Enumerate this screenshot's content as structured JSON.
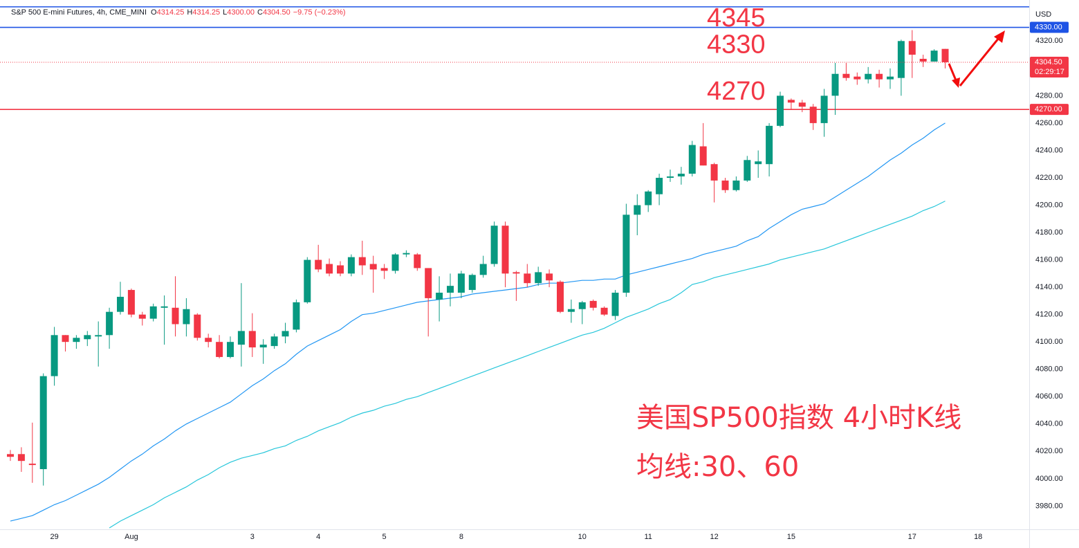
{
  "chart_data": {
    "type": "candlestick",
    "header": {
      "symbol": "S&P 500 E-mini Futures, 4h, CME_MINI",
      "ohlc": [
        {
          "key": "O",
          "value": "4314.25"
        },
        {
          "key": "H",
          "value": "4314.25"
        },
        {
          "key": "L",
          "value": "4300.00"
        },
        {
          "key": "C",
          "value": "4304.50"
        }
      ],
      "change": "−9.75 (−0.23%)"
    },
    "currency": "USD",
    "categories": [
      null,
      null,
      null,
      null,
      "29",
      null,
      null,
      null,
      null,
      null,
      null,
      "Aug",
      null,
      null,
      null,
      null,
      null,
      null,
      null,
      null,
      null,
      null,
      "3",
      null,
      null,
      null,
      null,
      null,
      "4",
      null,
      null,
      null,
      null,
      null,
      "5",
      null,
      null,
      null,
      null,
      null,
      null,
      "8",
      null,
      null,
      null,
      null,
      null,
      null,
      null,
      null,
      null,
      null,
      "10",
      null,
      null,
      null,
      null,
      null,
      "11",
      null,
      null,
      null,
      null,
      null,
      "12",
      null,
      null,
      null,
      null,
      null,
      null,
      "15",
      null,
      null,
      null,
      null,
      null,
      null,
      null,
      null,
      null,
      null,
      "17",
      null,
      null,
      null,
      null,
      null,
      "18",
      null,
      null,
      null,
      null
    ],
    "open": [
      4018,
      4018,
      4011,
      4007,
      4075,
      4105,
      4100,
      4102,
      4104,
      4105,
      4122,
      4138,
      4120,
      4117,
      4125,
      4125,
      4113,
      4120,
      4103,
      4100,
      4089,
      4098,
      4108,
      4096,
      4097,
      4104,
      4109,
      4129,
      4160,
      4157,
      4156,
      4150,
      4162,
      4157,
      4154,
      4152,
      4164,
      4164,
      4154,
      4131,
      4136,
      4136,
      4138,
      4149,
      4157,
      4185,
      4151,
      4150,
      4143,
      4150,
      4144,
      4122,
      4124,
      4130,
      4125,
      4119,
      4136,
      4193,
      4200,
      4208,
      4220,
      4221,
      4223,
      4243,
      4230,
      4218,
      4211,
      4218,
      4230,
      4230,
      4258,
      4277,
      4275,
      4272,
      4260,
      4280,
      4296,
      4294,
      4292,
      4296,
      4292,
      4293,
      4320,
      4307,
      4305,
      4314.25,
      null,
      null,
      null,
      null,
      null,
      null,
      null
    ],
    "high": [
      4021,
      4023,
      4041,
      4077,
      4111,
      4105,
      4105,
      4108,
      4115,
      4125,
      4144,
      4139,
      4122,
      4128,
      4134,
      4148,
      4132,
      4121,
      4106,
      4105,
      4104,
      4143,
      4121,
      4102,
      4106,
      4114,
      4131,
      4162,
      4171,
      4161,
      4159,
      4164,
      4174,
      4163,
      4157,
      4165,
      4167,
      4165,
      4154,
      4148,
      4150,
      4152,
      4150,
      4163,
      4188,
      4188,
      4152,
      4157,
      4155,
      4153,
      4145,
      4131,
      4130,
      4131,
      4126,
      4138,
      4201,
      4208,
      4211,
      4223,
      4226,
      4228,
      4247,
      4260,
      4231,
      4220,
      4221,
      4236,
      4240,
      4260,
      4283,
      4278,
      4277,
      4274,
      4285,
      4304,
      4304,
      4297,
      4301,
      4299,
      4300,
      4321,
      4328,
      4310,
      4314,
      4314.25,
      null,
      null,
      null,
      null,
      null,
      null,
      null
    ],
    "low": [
      4013,
      4005,
      3997,
      3995,
      4068,
      4093,
      4095,
      4097,
      4082,
      4095,
      4120,
      4118,
      4112,
      4115,
      4098,
      4104,
      4104,
      4101,
      4096,
      4088,
      4088,
      4082,
      4089,
      4084,
      4095,
      4099,
      4107,
      4128,
      4151,
      4148,
      4148,
      4148,
      4149,
      4136,
      4146,
      4150,
      4162,
      4152,
      4104,
      4115,
      4126,
      4132,
      4136,
      4147,
      4155,
      4140,
      4130,
      4140,
      4141,
      4140,
      4121,
      4114,
      4113,
      4123,
      4119,
      4116,
      4133,
      4178,
      4195,
      4200,
      4217,
      4215,
      4221,
      4229,
      4202,
      4209,
      4210,
      4217,
      4220,
      4221,
      4257,
      4270,
      4268,
      4255,
      4250,
      4266,
      4291,
      4288,
      4289,
      4286,
      4285,
      4280,
      4293,
      4301,
      4305,
      4300,
      null,
      null,
      null,
      null,
      null,
      null,
      null
    ],
    "close": [
      4016,
      4013,
      4010,
      4075,
      4105,
      4100,
      4103,
      4105,
      4105,
      4122,
      4133,
      4120,
      4117,
      4126,
      4126,
      4113,
      4124,
      4103,
      4100,
      4089,
      4100,
      4108,
      4096,
      4098,
      4104,
      4108,
      4129,
      4160,
      4153,
      4150,
      4150,
      4162,
      4156,
      4153,
      4152,
      4164,
      4165,
      4154,
      4132,
      4136,
      4141,
      4150,
      4149,
      4157,
      4185,
      4150,
      4150,
      4143,
      4151,
      4145,
      4122,
      4124,
      4129,
      4125,
      4120,
      4136,
      4193,
      4200,
      4210,
      4220,
      4221,
      4223,
      4244,
      4229,
      4218,
      4211,
      4218,
      4233,
      4232,
      4258,
      4280,
      4275,
      4272,
      4260,
      4280,
      4296,
      4293,
      4292,
      4296,
      4292,
      4294,
      4320,
      4310,
      4305,
      4313,
      4304.5,
      null,
      null,
      null,
      null,
      null,
      null,
      null
    ],
    "up_color": "#089981",
    "down_color": "#f23645",
    "overlays": [
      {
        "color": "#2196f3",
        "values": [
          3969,
          3971,
          3973,
          3977,
          3981,
          3984,
          3988,
          3992,
          3996,
          4001,
          4007,
          4013,
          4018,
          4024,
          4029,
          4035,
          4040,
          4044,
          4048,
          4052,
          4056,
          4062,
          4068,
          4073,
          4079,
          4084,
          4091,
          4097,
          4101,
          4105,
          4109,
          4115,
          4120,
          4121,
          4123,
          4125,
          4127,
          4129,
          4130,
          4131,
          4132,
          4133,
          4135,
          4136,
          4137,
          4138,
          4139,
          4140,
          4142,
          4143,
          4143,
          4144,
          4145,
          4145,
          4146,
          4146,
          4149,
          4151,
          4153,
          4155,
          4157,
          4159,
          4161,
          4164,
          4166,
          4168,
          4170,
          4174,
          4177,
          4183,
          4188,
          4193,
          4197,
          4199,
          4201,
          4206,
          4211,
          4216,
          4221,
          4227,
          4233,
          4238,
          4244,
          4249,
          4255,
          4260,
          null,
          null,
          null,
          null,
          null,
          null,
          null
        ]
      },
      {
        "color": "#26c6da",
        "values": [
          null,
          null,
          null,
          null,
          null,
          null,
          null,
          null,
          null,
          3964,
          3969,
          3973,
          3977,
          3981,
          3986,
          3990,
          3994,
          3999,
          4003,
          4008,
          4012,
          4015,
          4017,
          4019,
          4022,
          4024,
          4028,
          4031,
          4035,
          4038,
          4041,
          4045,
          4048,
          4050,
          4053,
          4055,
          4058,
          4060,
          4063,
          4066,
          4069,
          4072,
          4075,
          4078,
          4081,
          4084,
          4087,
          4090,
          4093,
          4096,
          4099,
          4102,
          4105,
          4107,
          4110,
          4114,
          4118,
          4121,
          4124,
          4128,
          4131,
          4136,
          4142,
          4144,
          4147,
          4149,
          4151,
          4153,
          4155,
          4157,
          4160,
          4162,
          4164,
          4166,
          4168,
          4171,
          4174,
          4177,
          4180,
          4183,
          4186,
          4189,
          4192,
          4196,
          4199,
          4203,
          null,
          null,
          null,
          null,
          null,
          null,
          null
        ]
      }
    ],
    "levels": [
      {
        "value": 4345,
        "color": "#1e53e5",
        "annotation": "4345"
      },
      {
        "value": 4330,
        "color": "#1e53e5",
        "label": "4330.00",
        "annotation": "4330"
      },
      {
        "value": 4270,
        "color": "#f23645",
        "label": "4270.00",
        "annotation": "4270"
      }
    ],
    "last_price": {
      "value": 4304.5,
      "label": "4304.50",
      "countdown": "02:29:17",
      "color": "#f23645"
    },
    "annotations": [
      "美国SP500指数 4小时K线",
      "均线:30、60"
    ],
    "ylim": [
      3963,
      4350
    ],
    "yticks": [
      {
        "value": 3980,
        "label": "3980.00"
      },
      {
        "value": 4000,
        "label": "4000.00"
      },
      {
        "value": 4020,
        "label": "4020.00"
      },
      {
        "value": 4040,
        "label": "4040.00"
      },
      {
        "value": 4060,
        "label": "4060.00"
      },
      {
        "value": 4080,
        "label": "4080.00"
      },
      {
        "value": 4100,
        "label": "4100.00"
      },
      {
        "value": 4120,
        "label": "4120.00"
      },
      {
        "value": 4140,
        "label": "4140.00"
      },
      {
        "value": 4160,
        "label": "4160.00"
      },
      {
        "value": 4180,
        "label": "4180.00"
      },
      {
        "value": 4200,
        "label": "4200.00"
      },
      {
        "value": 4220,
        "label": "4220.00"
      },
      {
        "value": 4240,
        "label": "4240.00"
      },
      {
        "value": 4260,
        "label": "4260.00"
      },
      {
        "value": 4280,
        "label": "4280.00"
      },
      {
        "value": 4300,
        "label": "4300.00"
      },
      {
        "value": 4320,
        "label": "4320.00"
      }
    ],
    "grid": false
  }
}
